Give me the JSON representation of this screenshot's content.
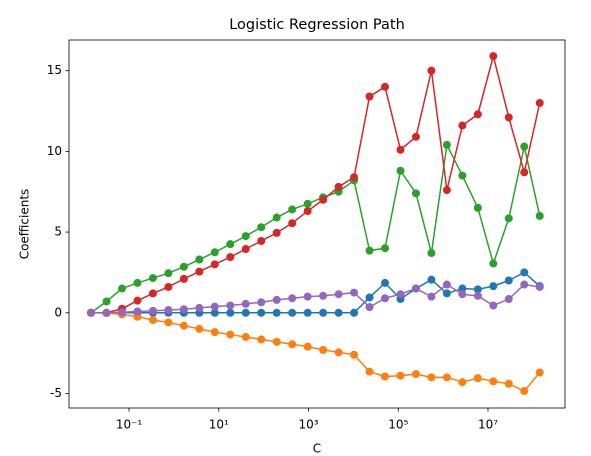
{
  "chart_data": {
    "type": "line",
    "title": "Logistic Regression Path",
    "x_label": "C",
    "y_label": "Coefficients",
    "x_scale": "log",
    "x": [
      0.01422,
      0.03148,
      0.06966,
      0.1541,
      0.3407,
      0.7534,
      1.667,
      3.688,
      8.16,
      18.05,
      39.9,
      88.3,
      195.4,
      432,
      956,
      2115,
      4678,
      10350,
      22900,
      50660,
      112100,
      247800,
      548300,
      1213000,
      2685000,
      5940000,
      13140000,
      29050000,
      64300000,
      142200000
    ],
    "series": [
      {
        "color": "#1f77b4",
        "values": [
          0,
          0,
          0,
          0,
          0,
          0,
          0,
          0,
          0,
          0,
          0,
          0,
          0,
          0,
          0,
          0,
          0,
          0,
          0.95,
          1.85,
          0.85,
          1.5,
          2.05,
          1.2,
          1.5,
          1.45,
          1.65,
          2.0,
          2.5,
          1.65
        ]
      },
      {
        "color": "#ff7f0e",
        "values": [
          0,
          -0.02,
          -0.1,
          -0.25,
          -0.45,
          -0.6,
          -0.8,
          -1.0,
          -1.2,
          -1.35,
          -1.5,
          -1.65,
          -1.8,
          -1.95,
          -2.1,
          -2.3,
          -2.45,
          -2.6,
          -3.65,
          -3.95,
          -3.9,
          -3.8,
          -4.0,
          -4.0,
          -4.3,
          -4.05,
          -4.25,
          -4.4,
          -4.85,
          -3.7
        ]
      },
      {
        "color": "#2ca02c",
        "values": [
          0,
          0.7,
          1.5,
          1.85,
          2.15,
          2.45,
          2.85,
          3.3,
          3.75,
          4.25,
          4.75,
          5.3,
          5.9,
          6.4,
          6.75,
          7.15,
          7.5,
          8.2,
          3.85,
          4.0,
          8.8,
          7.4,
          3.7,
          10.4,
          8.5,
          6.5,
          3.05,
          5.85,
          10.3,
          6.0
        ]
      },
      {
        "color": "#d62728",
        "values": [
          0,
          0,
          0.25,
          0.75,
          1.2,
          1.6,
          2.1,
          2.55,
          3.0,
          3.45,
          3.95,
          4.45,
          4.95,
          5.55,
          6.3,
          7.0,
          7.8,
          8.4,
          13.4,
          14.0,
          10.1,
          10.9,
          15.0,
          7.6,
          11.6,
          12.3,
          15.9,
          12.1,
          8.7,
          13.0
        ]
      },
      {
        "color": "#9467bd",
        "values": [
          0,
          0,
          0.03,
          0.08,
          0.12,
          0.17,
          0.22,
          0.3,
          0.38,
          0.45,
          0.55,
          0.65,
          0.8,
          0.9,
          1.0,
          1.05,
          1.15,
          1.25,
          0.35,
          0.9,
          1.15,
          1.5,
          1.0,
          1.75,
          1.15,
          1.05,
          0.45,
          0.85,
          1.75,
          1.6
        ]
      }
    ],
    "xlim": [
      0.00459,
      520000000
    ],
    "ylim": [
      -5.9,
      16.9
    ],
    "xticks": [
      {
        "value": 0.1,
        "label": "10⁻¹"
      },
      {
        "value": 10,
        "label": "10¹"
      },
      {
        "value": 1000,
        "label": "10³"
      },
      {
        "value": 100000,
        "label": "10⁵"
      },
      {
        "value": 10000000,
        "label": "10⁷"
      }
    ],
    "yticks": [
      -5,
      0,
      5,
      10,
      15
    ]
  }
}
